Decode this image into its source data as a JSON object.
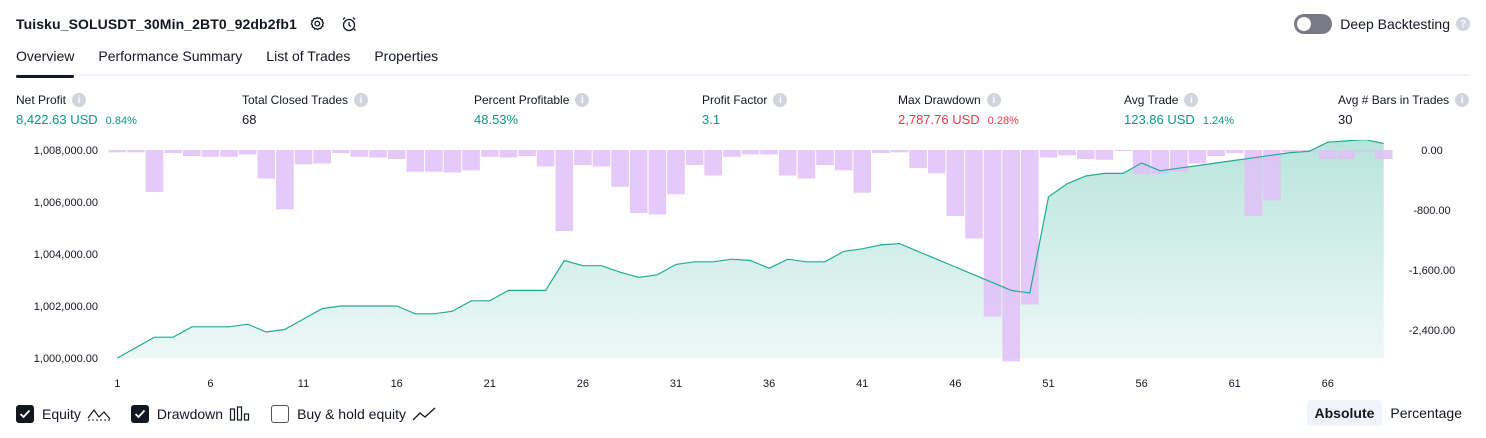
{
  "header": {
    "strategy_title": "Tuisku_SOLUSDT_30Min_2BT0_92db2fb1",
    "deep_backtesting_label": "Deep Backtesting",
    "deep_backtesting_enabled": false
  },
  "tabs": [
    {
      "label": "Overview",
      "active": true
    },
    {
      "label": "Performance Summary",
      "active": false
    },
    {
      "label": "List of Trades",
      "active": false
    },
    {
      "label": "Properties",
      "active": false
    }
  ],
  "metrics": [
    {
      "label": "Net Profit",
      "value": "8,422.63 USD",
      "pct": "0.84%",
      "color": "#089981"
    },
    {
      "label": "Total Closed Trades",
      "value": "68",
      "pct": "",
      "color": "#131722"
    },
    {
      "label": "Percent Profitable",
      "value": "48.53%",
      "pct": "",
      "color": "#089981"
    },
    {
      "label": "Profit Factor",
      "value": "3.1",
      "pct": "",
      "color": "#089981"
    },
    {
      "label": "Max Drawdown",
      "value": "2,787.76 USD",
      "pct": "0.28%",
      "color": "#f23645"
    },
    {
      "label": "Avg Trade",
      "value": "123.86 USD",
      "pct": "1.24%",
      "color": "#089981"
    },
    {
      "label": "Avg # Bars in Trades",
      "value": "30",
      "pct": "",
      "color": "#131722"
    }
  ],
  "chart_data": {
    "type": "area",
    "x_ticks": [
      1,
      6,
      11,
      16,
      21,
      26,
      31,
      36,
      41,
      46,
      51,
      56,
      61,
      66
    ],
    "equity_axis": {
      "ticks": [
        "1,000,000.00",
        "1,002,000.00",
        "1,004,000.00",
        "1,006,000.00",
        "1,008,000.00"
      ],
      "ylim": [
        1000000,
        1008000
      ]
    },
    "drawdown_axis": {
      "ticks": [
        "0.00",
        "-800.00",
        "-1,600.00",
        "-2,400.00"
      ],
      "ylim": [
        -2800,
        0
      ]
    },
    "equity": [
      1000000,
      1000400,
      1000800,
      1000800,
      1001200,
      1001200,
      1001200,
      1001300,
      1001000,
      1001100,
      1001500,
      1001900,
      1002000,
      1002000,
      1002000,
      1002000,
      1001700,
      1001700,
      1001800,
      1002200,
      1002200,
      1002600,
      1002600,
      1002600,
      1003750,
      1003550,
      1003550,
      1003300,
      1003100,
      1003200,
      1003600,
      1003700,
      1003700,
      1003800,
      1003750,
      1003450,
      1003800,
      1003700,
      1003700,
      1004100,
      1004200,
      1004350,
      1004400,
      1004100,
      1003800,
      1003500,
      1003200,
      1002900,
      1002600,
      1002500,
      1006200,
      1006700,
      1007000,
      1007100,
      1007100,
      1007500,
      1007200,
      1007300,
      1007400,
      1007500,
      1007600,
      1007700,
      1007800,
      1007900,
      1007950,
      1008300,
      1008350,
      1008400,
      1008250
    ],
    "drawdown": [
      -30,
      -30,
      -560,
      -40,
      -80,
      -90,
      -90,
      -60,
      -380,
      -790,
      -190,
      -180,
      -40,
      -90,
      -100,
      -120,
      -290,
      -290,
      -300,
      -270,
      -90,
      -100,
      -80,
      -220,
      -1080,
      -200,
      -220,
      -490,
      -840,
      -860,
      -590,
      -200,
      -340,
      -90,
      -60,
      -60,
      -340,
      -380,
      -200,
      -270,
      -570,
      -40,
      -30,
      -240,
      -310,
      -880,
      -1180,
      -2220,
      -2820,
      -2060,
      -100,
      -70,
      -120,
      -130,
      -10,
      -320,
      -320,
      -290,
      -180,
      -80,
      -40,
      -880,
      -670,
      -30,
      -30,
      -120,
      -120,
      -20,
      -120
    ]
  },
  "legend": [
    {
      "label": "Equity",
      "checked": true
    },
    {
      "label": "Drawdown",
      "checked": true
    },
    {
      "label": "Buy & hold equity",
      "checked": false
    }
  ],
  "modes": [
    {
      "label": "Absolute",
      "active": true
    },
    {
      "label": "Percentage",
      "active": false
    }
  ],
  "colors": {
    "equity_line": "#22ab94",
    "drawdown_bar": "#e1bff7",
    "positive": "#089981",
    "negative": "#f23645"
  }
}
